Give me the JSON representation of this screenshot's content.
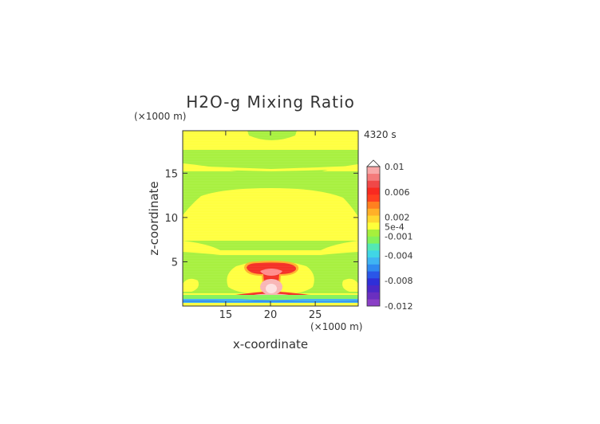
{
  "chart_data": {
    "type": "heatmap",
    "title": "H2O-g Mixing Ratio",
    "time_label": "4320 s",
    "xlabel": "x-coordinate",
    "ylabel": "z-coordinate",
    "x_unit": "(×1000 m)",
    "y_unit": "(×1000 m)",
    "xlim": [
      10.2,
      29.8
    ],
    "ylim": [
      0,
      19.8
    ],
    "x_ticks": [
      {
        "value": 15,
        "label": "15"
      },
      {
        "value": 20,
        "label": "20"
      },
      {
        "value": 25,
        "label": "25"
      }
    ],
    "y_ticks": [
      {
        "value": 5,
        "label": "5"
      },
      {
        "value": 10,
        "label": "10"
      },
      {
        "value": 15,
        "label": "15"
      }
    ],
    "colorbar": {
      "min": -0.012,
      "max": 0.01,
      "tick_labels": [
        {
          "value": 0.01,
          "label": "0.01"
        },
        {
          "value": 0.006,
          "label": "0.006"
        },
        {
          "value": 0.002,
          "label": "0.002"
        },
        {
          "value": 0.0005,
          "label": "5e-4"
        },
        {
          "value": -0.001,
          "label": "-0.001"
        },
        {
          "value": -0.004,
          "label": "-0.004"
        },
        {
          "value": -0.008,
          "label": "-0.008"
        },
        {
          "value": -0.012,
          "label": "-0.012"
        }
      ],
      "bands": [
        {
          "color": "#8a3fc6"
        },
        {
          "color": "#6a2fc0"
        },
        {
          "color": "#4b28c8"
        },
        {
          "color": "#2f2fd8"
        },
        {
          "color": "#2a56e8"
        },
        {
          "color": "#2f8af0"
        },
        {
          "color": "#3fb4f2"
        },
        {
          "color": "#40d6e6"
        },
        {
          "color": "#54e8b4"
        },
        {
          "color": "#82f25a"
        },
        {
          "color": "#a6f03c"
        },
        {
          "color": "#ffff3a"
        },
        {
          "color": "#ffd830"
        },
        {
          "color": "#ffb028"
        },
        {
          "color": "#ff8020"
        },
        {
          "color": "#ff4020"
        },
        {
          "color": "#f82a20"
        },
        {
          "color": "#f04848"
        },
        {
          "color": "#f47a7a"
        },
        {
          "color": "#f8a8a8"
        }
      ]
    },
    "field_regions": [
      {
        "name": "background-yellow",
        "value": 0.0,
        "color": "#ffff3c"
      },
      {
        "name": "green-upper-band",
        "value": -0.0005,
        "color": "#a6f03c"
      },
      {
        "name": "green-mid-band",
        "value": -0.0005,
        "color": "#a6f03c"
      },
      {
        "name": "green-lower-band",
        "value": -0.0005,
        "color": "#a6f03c"
      },
      {
        "name": "red-plume",
        "value": 0.006,
        "color": "#f42c22"
      },
      {
        "name": "pink-core",
        "value": 0.009,
        "color": "#f8b4b4"
      },
      {
        "name": "blue-surface-layer",
        "value": -0.004,
        "color": "#2f8af0"
      }
    ]
  }
}
